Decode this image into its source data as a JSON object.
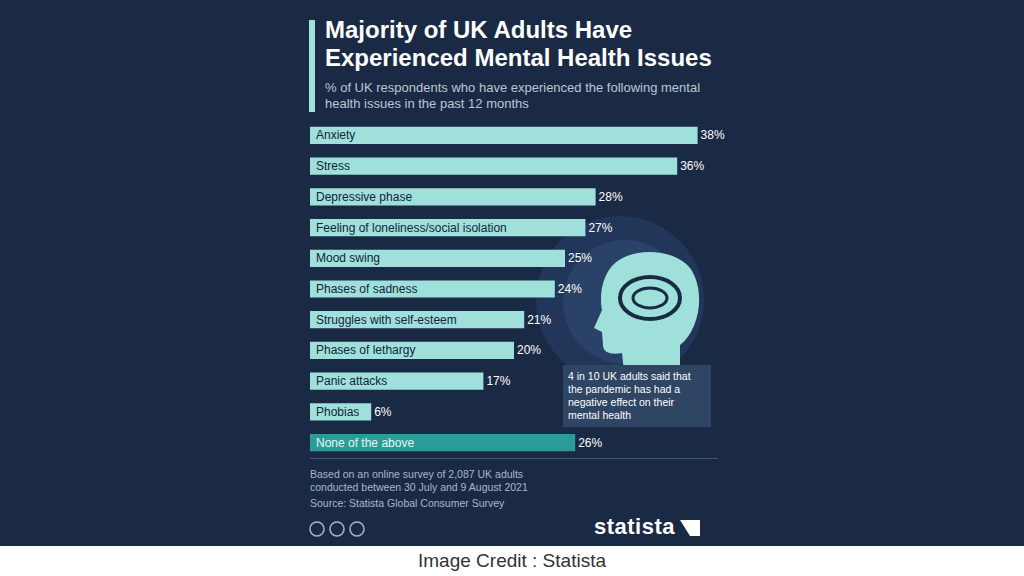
{
  "chart_data": {
    "type": "bar",
    "orientation": "horizontal",
    "title": "Majority of UK Adults Have Experienced Mental Health Issues",
    "subtitle": "% of UK respondents who have experienced the following mental health issues in the past 12 months",
    "categories": [
      "Anxiety",
      "Stress",
      "Depressive phase",
      "Feeling of loneliness/social isolation",
      "Mood swing",
      "Phases of sadness",
      "Struggles with self-esteem",
      "Phases of lethargy",
      "Panic attacks",
      "Phobias",
      "None of the above"
    ],
    "values": [
      38,
      36,
      28,
      27,
      25,
      24,
      21,
      20,
      17,
      6,
      26
    ],
    "value_labels": [
      "38%",
      "36%",
      "28%",
      "27%",
      "25%",
      "24%",
      "21%",
      "20%",
      "17%",
      "6%",
      "26%"
    ],
    "colors": [
      "#9fe0db",
      "#9fe0db",
      "#9fe0db",
      "#9fe0db",
      "#9fe0db",
      "#9fe0db",
      "#9fe0db",
      "#9fe0db",
      "#9fe0db",
      "#9fe0db",
      "#2a9d98"
    ],
    "xlim": [
      0,
      40
    ],
    "grid": false,
    "tick_labels": false,
    "data_labels": true,
    "annotations": [
      "4 in 10 UK adults said that the pandemic has had a negative effect on their mental health"
    ],
    "note": "Based on an online survey of 2,087 UK adults conducted between 30 July and 9 August 2021",
    "source": "Source: Statista Global Consumer Survey",
    "logo": "statista",
    "credit": "Image Credit : Statista"
  }
}
